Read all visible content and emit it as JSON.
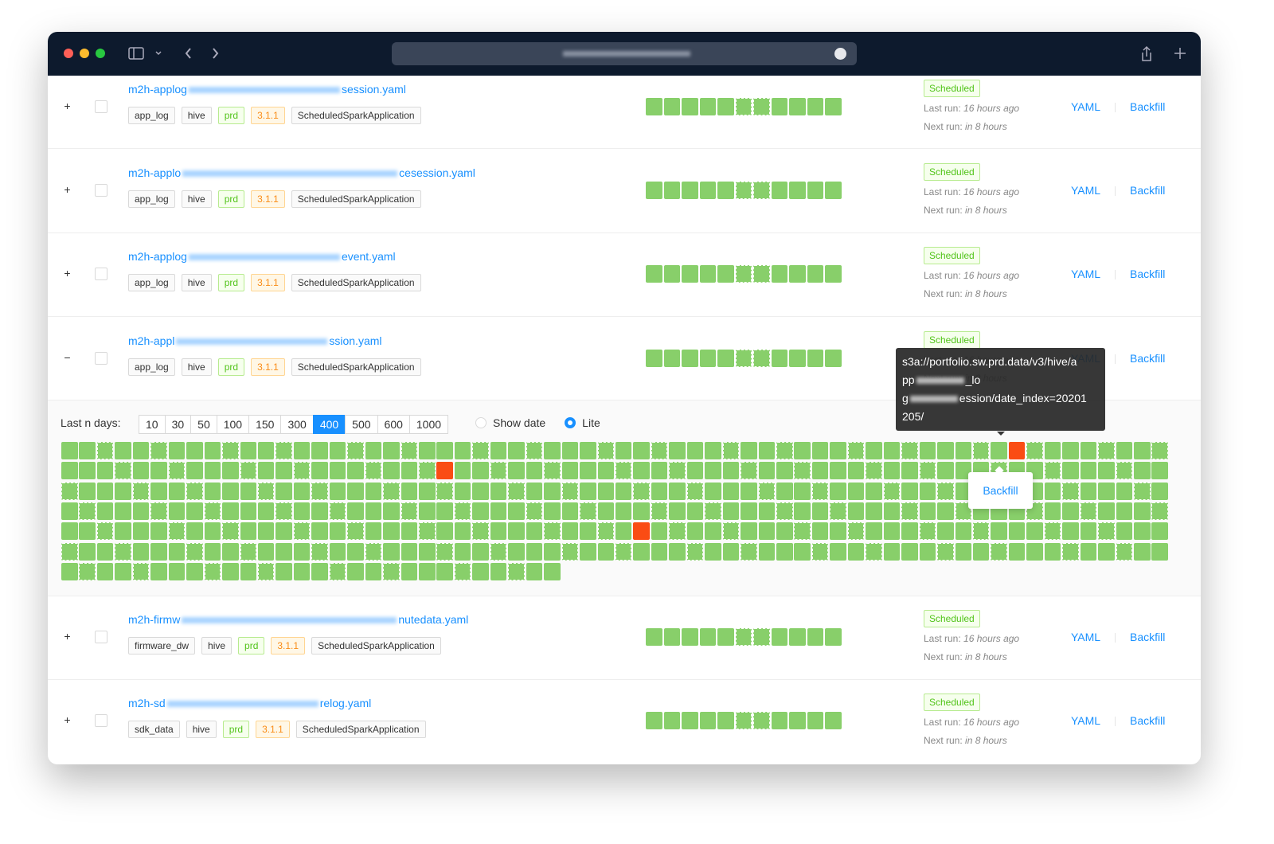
{
  "rows": [
    {
      "toggle": "+",
      "name_prefix": "m2h-applog",
      "name_suffix": "session.yaml",
      "tags": [
        "app_log",
        "hive",
        "prd",
        "3.1.1",
        "ScheduledSparkApplication"
      ],
      "status": "Scheduled",
      "last_run_label": "Last run:",
      "last_run": "16 hours ago",
      "next_run_label": "Next run:",
      "next_run": "in 8 hours",
      "links": [
        "YAML",
        "Backfill"
      ]
    },
    {
      "toggle": "+",
      "name_prefix": "m2h-applo",
      "name_suffix": "cesession.yaml",
      "tags": [
        "app_log",
        "hive",
        "prd",
        "3.1.1",
        "ScheduledSparkApplication"
      ],
      "status": "Scheduled",
      "last_run_label": "Last run:",
      "last_run": "16 hours ago",
      "next_run_label": "Next run:",
      "next_run": "in 8 hours",
      "links": [
        "YAML",
        "Backfill"
      ]
    },
    {
      "toggle": "+",
      "name_prefix": "m2h-applog",
      "name_suffix": "event.yaml",
      "tags": [
        "app_log",
        "hive",
        "prd",
        "3.1.1",
        "ScheduledSparkApplication"
      ],
      "status": "Scheduled",
      "last_run_label": "Last run:",
      "last_run": "16 hours ago",
      "next_run_label": "Next run:",
      "next_run": "in 8 hours",
      "links": [
        "YAML",
        "Backfill"
      ]
    },
    {
      "toggle": "−",
      "name_prefix": "m2h-appl",
      "name_suffix": "ssion.yaml",
      "tags": [
        "app_log",
        "hive",
        "prd",
        "3.1.1",
        "ScheduledSparkApplication"
      ],
      "status": "Scheduled",
      "last_run_label": "Last run:",
      "last_run": "16 hours ago",
      "next_run_label": "Next run:",
      "next_run": "in 8 hours",
      "links": [
        "YAML",
        "Backfill"
      ]
    },
    {
      "toggle": "+",
      "name_prefix": "m2h-firmw",
      "name_suffix": "nutedata.yaml",
      "tags": [
        "firmware_dw",
        "hive",
        "prd",
        "3.1.1",
        "ScheduledSparkApplication"
      ],
      "status": "Scheduled",
      "last_run_label": "Last run:",
      "last_run": "16 hours ago",
      "next_run_label": "Next run:",
      "next_run": "in 8 hours",
      "links": [
        "YAML",
        "Backfill"
      ]
    },
    {
      "toggle": "+",
      "name_prefix": "m2h-sd",
      "name_suffix": "relog.yaml",
      "tags": [
        "sdk_data",
        "hive",
        "prd",
        "3.1.1",
        "ScheduledSparkApplication"
      ],
      "status": "Scheduled",
      "last_run_label": "Last run:",
      "last_run": "16 hours ago",
      "next_run_label": "Next run:",
      "next_run": "in 8 hours",
      "links": [
        "YAML",
        "Backfill"
      ]
    }
  ],
  "panel": {
    "label": "Last n days:",
    "options": [
      10,
      30,
      50,
      100,
      150,
      300,
      400,
      500,
      600,
      1000
    ],
    "selected": 400,
    "radios": [
      "Show date",
      "Lite"
    ],
    "radio_selected": "Lite"
  },
  "tooltip": {
    "lines": [
      [
        "s3a://portfolio.sw.prd.data/v3/hive/a"
      ],
      [
        "pp",
        "_lo"
      ],
      [
        "g",
        "ession/date_index=20201"
      ],
      [
        "205/"
      ]
    ]
  },
  "popup": {
    "button": "Backfill"
  }
}
